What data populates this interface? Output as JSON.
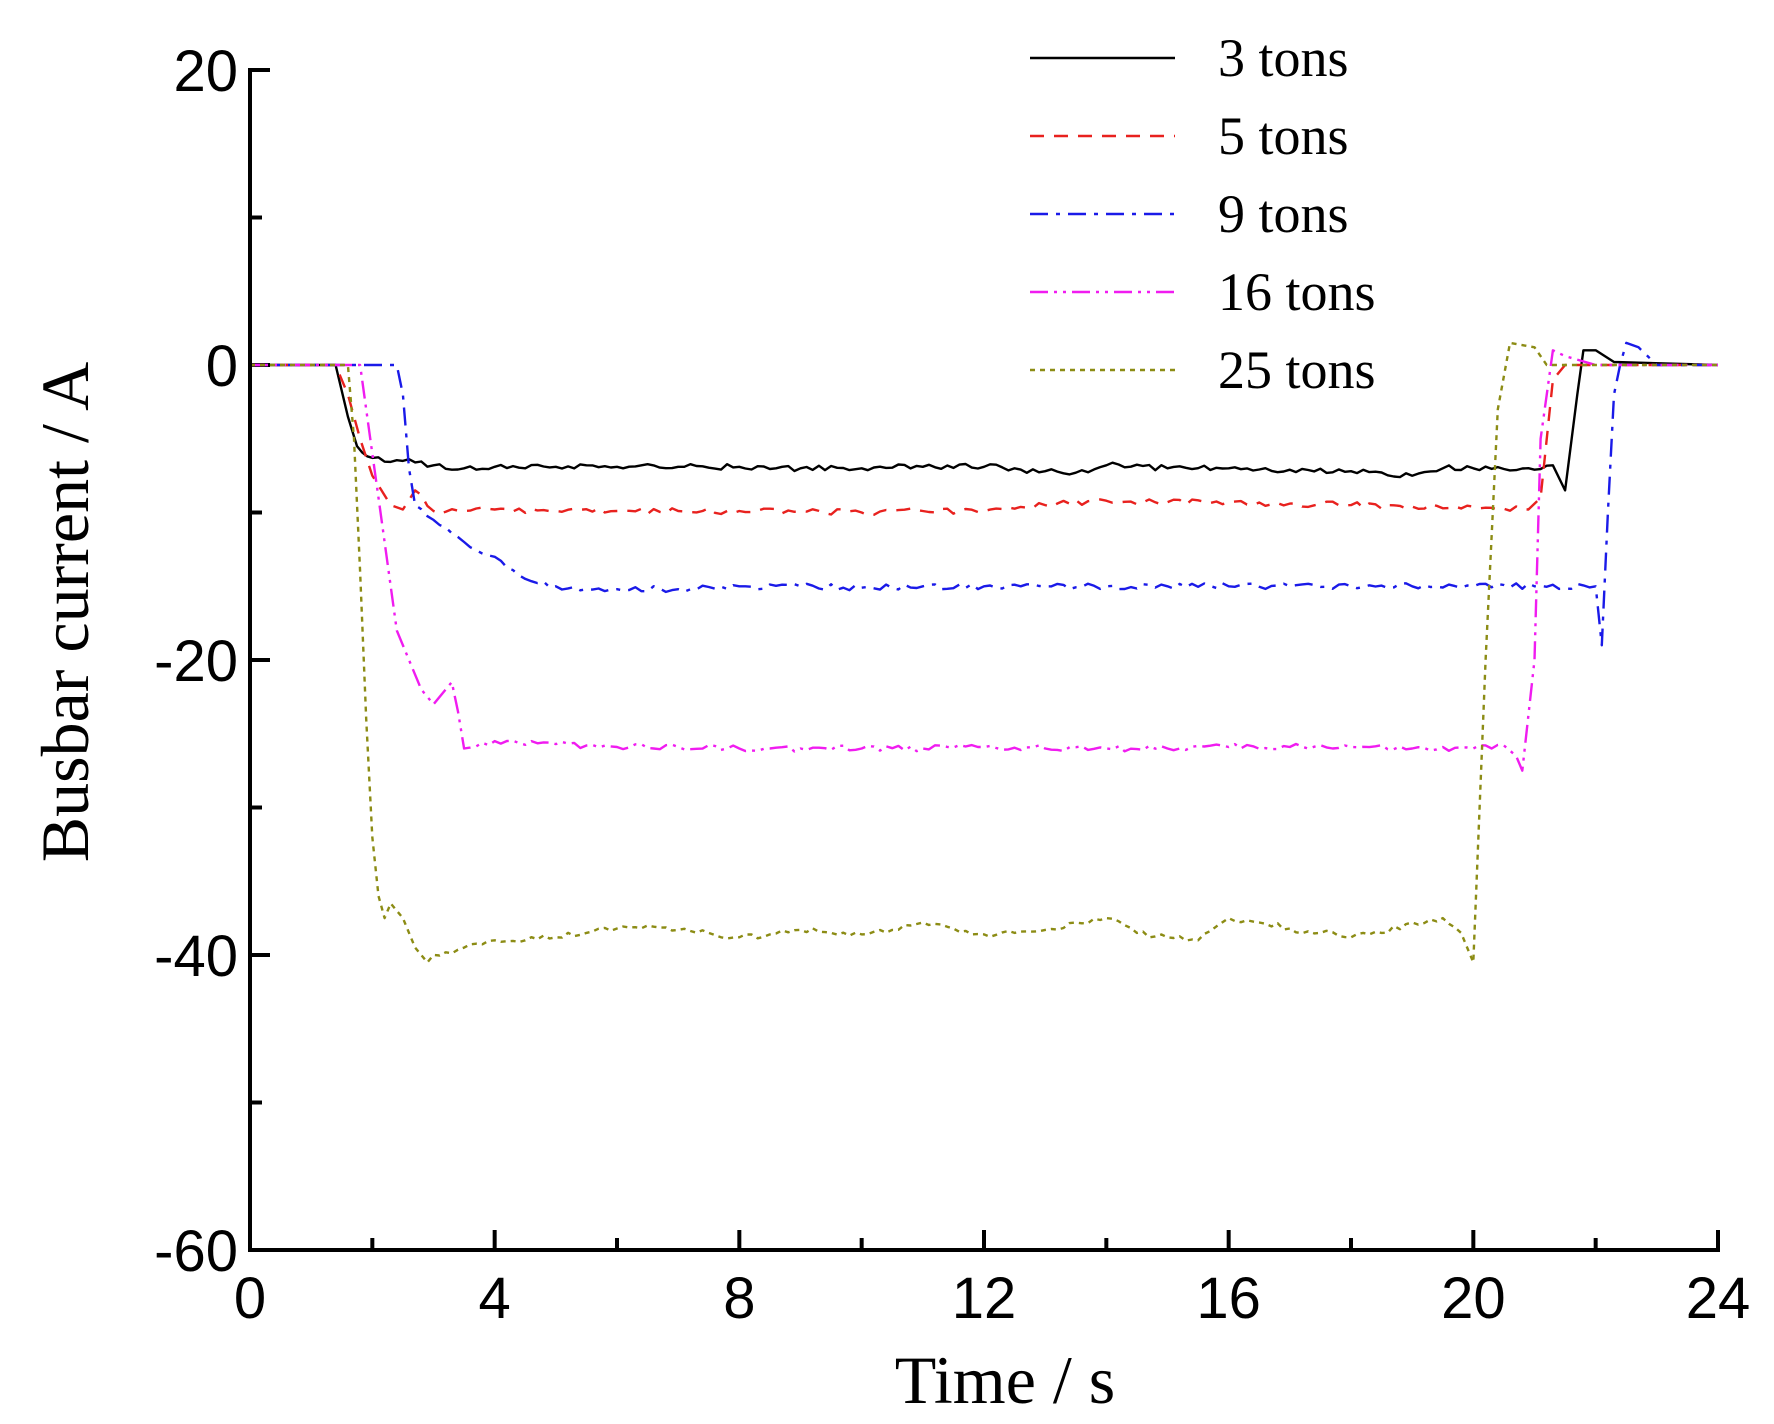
{
  "chart_data": {
    "type": "line",
    "title": "",
    "xlabel": "Time  / s",
    "ylabel": "Busbar current  / A",
    "xlim": [
      0,
      24
    ],
    "ylim": [
      -60,
      20
    ],
    "xticks": [
      0,
      4,
      8,
      12,
      16,
      20,
      24
    ],
    "xtick_labels": [
      "0",
      "4",
      "8",
      "12",
      "16",
      "20",
      "24"
    ],
    "yticks": [
      20,
      0,
      -20,
      -40,
      -60
    ],
    "ytick_labels": [
      "20",
      "0",
      "-20",
      "-40",
      "-60"
    ],
    "x_minor_step": 2,
    "y_minor_step": 10,
    "grid": false,
    "legend_position": "top-right",
    "series": [
      {
        "name": "3 tons",
        "color": "#000000",
        "dash": "none",
        "x": [
          0,
          1.4,
          1.6,
          1.75,
          2.0,
          2.5,
          3.0,
          3.5,
          4.0,
          4.5,
          5.0,
          6.0,
          7.0,
          8.0,
          9.0,
          10.0,
          11.0,
          12.0,
          13.0,
          13.5,
          14.0,
          15.0,
          16.0,
          17.0,
          18.0,
          18.8,
          19.5,
          20.0,
          21.0,
          21.3,
          21.5,
          21.7,
          21.8,
          22.0,
          22.3,
          24
        ],
        "y": [
          0,
          0,
          -3.5,
          -5.5,
          -6.3,
          -6.5,
          -6.8,
          -7.0,
          -6.9,
          -7.0,
          -6.9,
          -6.9,
          -6.9,
          -6.9,
          -7.0,
          -7.0,
          -6.9,
          -6.9,
          -7.2,
          -7.3,
          -6.8,
          -7.0,
          -7.0,
          -7.1,
          -7.2,
          -7.6,
          -7.0,
          -7.0,
          -7.1,
          -6.8,
          -8.5,
          -2.0,
          1.0,
          1.0,
          0.2,
          0
        ]
      },
      {
        "name": "5 tons",
        "color": "#e8211e",
        "dash": "14 10",
        "x": [
          0,
          1.4,
          1.6,
          1.8,
          2.0,
          2.3,
          2.5,
          2.7,
          3.0,
          3.5,
          4.0,
          5.0,
          6.0,
          7.0,
          8.0,
          9.0,
          10.0,
          11.0,
          12.0,
          13.0,
          14.0,
          15.0,
          16.0,
          17.0,
          18.0,
          19.0,
          20.0,
          20.9,
          21.1,
          21.3,
          21.5,
          24
        ],
        "y": [
          0,
          0,
          -2.0,
          -5.0,
          -7.5,
          -9.5,
          -9.8,
          -8.5,
          -9.9,
          -9.9,
          -9.8,
          -9.9,
          -9.9,
          -9.9,
          -9.9,
          -9.9,
          -10.0,
          -9.9,
          -9.9,
          -9.5,
          -9.2,
          -9.3,
          -9.3,
          -9.4,
          -9.5,
          -9.6,
          -9.6,
          -9.8,
          -9.0,
          -1.0,
          0,
          0
        ]
      },
      {
        "name": "9 tons",
        "color": "#1a1ae8",
        "dash": "18 8 4 8",
        "x": [
          0,
          2.4,
          2.5,
          2.6,
          2.7,
          3.0,
          3.5,
          4.0,
          4.5,
          5.0,
          5.5,
          6.0,
          7.0,
          8.0,
          9.0,
          10.0,
          11.0,
          12.0,
          13.0,
          14.0,
          15.0,
          16.0,
          17.0,
          18.0,
          19.0,
          20.0,
          21.0,
          22.0,
          22.1,
          22.2,
          22.3,
          22.4,
          22.5,
          22.7,
          23.0,
          24
        ],
        "y": [
          0,
          0,
          -2.0,
          -7.0,
          -9.5,
          -10.5,
          -12.0,
          -13.0,
          -14.5,
          -15.0,
          -15.2,
          -15.2,
          -15.2,
          -15.0,
          -15.0,
          -15.1,
          -15.0,
          -15.0,
          -15.0,
          -15.0,
          -15.0,
          -15.0,
          -15.0,
          -15.0,
          -15.0,
          -15.0,
          -15.0,
          -15.0,
          -19.0,
          -10.0,
          -2.0,
          0,
          1.5,
          1.2,
          0,
          0
        ]
      },
      {
        "name": "16 tons",
        "color": "#f01cf0",
        "dash": "18 6 3 6 3 6",
        "x": [
          0,
          1.8,
          1.9,
          2.0,
          2.1,
          2.2,
          2.3,
          2.4,
          2.6,
          2.8,
          3.0,
          3.2,
          3.3,
          3.4,
          3.5,
          4.0,
          5.0,
          6.0,
          7.0,
          8.0,
          9.0,
          10.0,
          11.0,
          12.0,
          13.0,
          14.0,
          15.0,
          16.0,
          17.0,
          18.0,
          19.0,
          20.0,
          20.5,
          20.7,
          20.8,
          21.0,
          21.1,
          21.3,
          21.5,
          22.0,
          24
        ],
        "y": [
          0,
          0,
          -3.0,
          -6.0,
          -9.0,
          -12.0,
          -15.0,
          -18.0,
          -20.0,
          -22.0,
          -23.0,
          -22.0,
          -21.5,
          -23.5,
          -26.0,
          -25.5,
          -25.7,
          -25.9,
          -25.9,
          -26.0,
          -26.0,
          -26.0,
          -26.0,
          -25.9,
          -26.0,
          -26.0,
          -26.0,
          -25.9,
          -25.9,
          -25.9,
          -26.0,
          -26.0,
          -25.8,
          -26.5,
          -27.5,
          -20.0,
          -5.0,
          1.0,
          0.6,
          0,
          0
        ]
      },
      {
        "name": "25 tons",
        "color": "#8c8c14",
        "dash": "5 5",
        "x": [
          0,
          1.6,
          1.7,
          1.8,
          1.9,
          2.0,
          2.1,
          2.2,
          2.3,
          2.5,
          2.7,
          2.9,
          3.0,
          3.5,
          4.0,
          4.5,
          5.0,
          5.5,
          6.0,
          6.5,
          7.0,
          7.5,
          8.0,
          8.5,
          9.0,
          9.5,
          10.0,
          10.5,
          11.0,
          11.5,
          12.0,
          12.5,
          13.0,
          13.5,
          14.0,
          14.5,
          15.0,
          15.5,
          16.0,
          16.5,
          17.0,
          17.5,
          18.0,
          18.5,
          19.0,
          19.5,
          19.8,
          20.0,
          20.2,
          20.4,
          20.6,
          21.0,
          21.2,
          22.0,
          24
        ],
        "y": [
          0,
          0,
          -5.0,
          -14.0,
          -24.0,
          -32.0,
          -36.0,
          -37.5,
          -36.5,
          -37.5,
          -39.5,
          -40.5,
          -40.0,
          -39.5,
          -39.0,
          -39.0,
          -38.8,
          -38.5,
          -38.2,
          -38.0,
          -38.3,
          -38.5,
          -38.8,
          -38.6,
          -38.3,
          -38.5,
          -38.6,
          -38.3,
          -37.8,
          -38.2,
          -38.6,
          -38.5,
          -38.3,
          -37.8,
          -37.5,
          -38.5,
          -38.8,
          -39.0,
          -37.5,
          -37.8,
          -38.2,
          -38.5,
          -38.8,
          -38.5,
          -37.8,
          -37.5,
          -38.5,
          -40.5,
          -20.0,
          -3.0,
          1.5,
          1.2,
          0,
          0,
          0
        ]
      }
    ]
  }
}
